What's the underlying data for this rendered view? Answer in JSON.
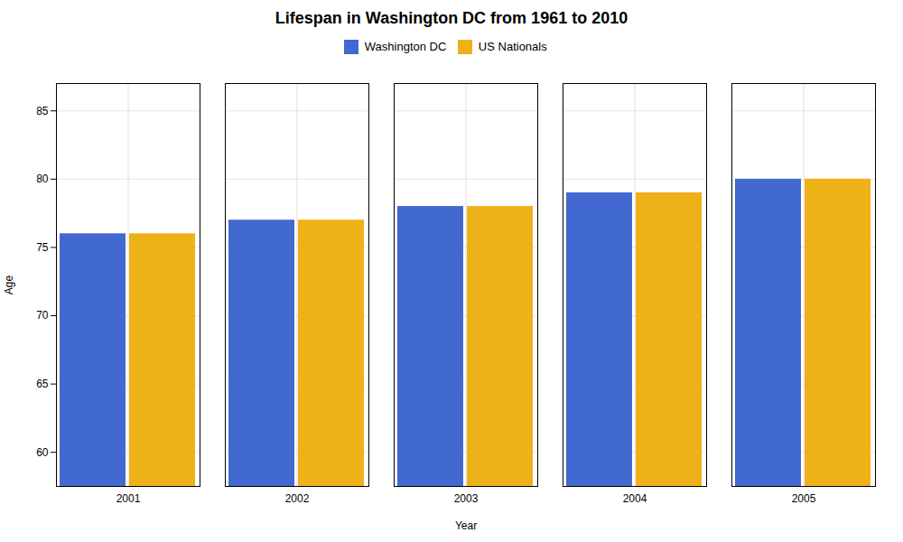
{
  "chart_data": {
    "type": "bar",
    "title": "Lifespan in Washington DC from 1961 to 2010",
    "xlabel": "Year",
    "ylabel": "Age",
    "categories": [
      "2001",
      "2002",
      "2003",
      "2004",
      "2005"
    ],
    "series": [
      {
        "name": "Washington DC",
        "values": [
          76,
          77,
          78,
          79,
          80
        ]
      },
      {
        "name": "US Nationals",
        "values": [
          76,
          77,
          78,
          79,
          80
        ]
      }
    ],
    "ylim": [
      57.5,
      87
    ],
    "yticks": [
      60,
      65,
      70,
      75,
      80,
      85
    ],
    "grid": true,
    "legend": "top"
  }
}
